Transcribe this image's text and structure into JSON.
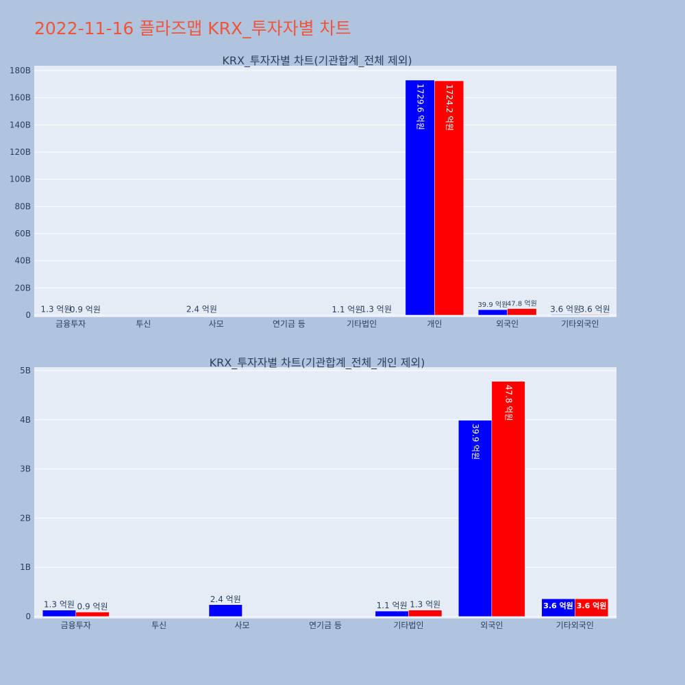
{
  "title": "2022-11-16 플라즈맵 KRX_투자자별 차트",
  "colors": {
    "series_a": "#0000ff",
    "series_b": "#ff0000",
    "plot_bg": "#e5ecf6",
    "page_bg": "#b0c4de",
    "title": "#ef553b"
  },
  "chart_data": [
    {
      "type": "bar",
      "title": "KRX_투자자별 차트(기관합계_전체 제외)",
      "categories": [
        "금융투자",
        "투신",
        "사모",
        "연기금 등",
        "기타법인",
        "개인",
        "외국인",
        "기타외국인"
      ],
      "ylim": [
        0,
        180000000000
      ],
      "y_ticks": [
        0,
        20000000000,
        40000000000,
        60000000000,
        80000000000,
        100000000000,
        120000000000,
        140000000000,
        160000000000,
        180000000000
      ],
      "y_tick_labels": [
        "0",
        "20B",
        "40B",
        "60B",
        "80B",
        "100B",
        "120B",
        "140B",
        "160B",
        "180B"
      ],
      "grid": true,
      "series": [
        {
          "color": "#0000ff",
          "values": [
            130000000,
            0,
            240000000,
            0,
            110000000,
            172960000000,
            3990000000,
            360000000
          ],
          "labels": [
            "1.3 억원",
            "",
            "2.4 억원",
            "",
            "1.1 억원",
            "1729.6 억원",
            "39.9 억원",
            "3.6 억원"
          ]
        },
        {
          "color": "#ff0000",
          "values": [
            90000000,
            0,
            0,
            0,
            130000000,
            172420000000,
            4780000000,
            360000000
          ],
          "labels": [
            "0.9 억원",
            "",
            "",
            "",
            "1.3 억원",
            "1724.2 억원",
            "47.8 억원",
            "3.6 억원"
          ]
        }
      ]
    },
    {
      "type": "bar",
      "title": "KRX_투자자별 차트(기관합계_전체_개인 제외)",
      "categories": [
        "금융투자",
        "투신",
        "사모",
        "연기금 등",
        "기타법인",
        "외국인",
        "기타외국인"
      ],
      "ylim": [
        0,
        5000000000
      ],
      "y_ticks": [
        0,
        1000000000,
        2000000000,
        3000000000,
        4000000000,
        5000000000
      ],
      "y_tick_labels": [
        "0",
        "1B",
        "2B",
        "3B",
        "4B",
        "5B"
      ],
      "grid": true,
      "series": [
        {
          "color": "#0000ff",
          "values": [
            130000000,
            0,
            240000000,
            0,
            110000000,
            3990000000,
            360000000
          ],
          "labels": [
            "1.3 억원",
            "",
            "2.4 억원",
            "",
            "1.1 억원",
            "39.9 억원",
            "3.6 억원"
          ]
        },
        {
          "color": "#ff0000",
          "values": [
            90000000,
            0,
            0,
            0,
            130000000,
            4780000000,
            360000000
          ],
          "labels": [
            "0.9 억원",
            "",
            "",
            "",
            "1.3 억원",
            "47.8 억원",
            "3.6 억원"
          ]
        }
      ]
    }
  ]
}
